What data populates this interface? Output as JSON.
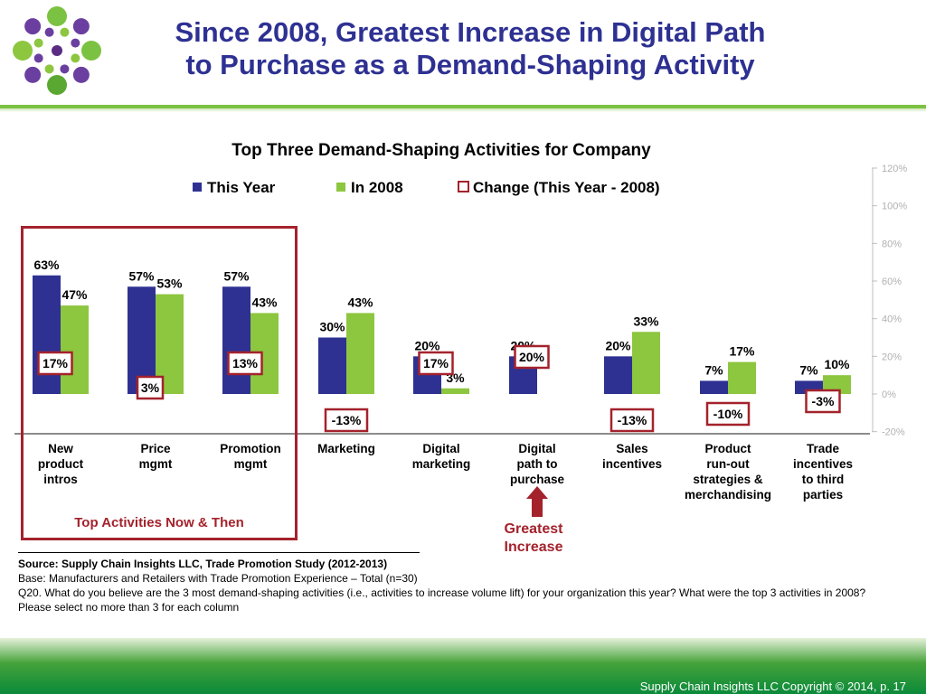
{
  "slide": {
    "title_line1": "Since 2008, Greatest Increase in Digital Path",
    "title_line2": "to Purchase as a Demand-Shaping Activity"
  },
  "colors": {
    "this_year": "#2e3192",
    "in_2008": "#8dc63f",
    "change": "#a4222c",
    "title": "#2e3192",
    "footer": "#0b8a3a"
  },
  "callouts": {
    "top_activities": "Top Activities Now & Then",
    "greatest_line1": "Greatest",
    "greatest_line2": "Increase"
  },
  "footnotes": {
    "source": "Source:  Supply Chain Insights LLC, Trade Promotion Study (2012-2013)",
    "base": "Base:  Manufacturers and Retailers with Trade Promotion Experience – Total (n=30)",
    "question": "Q20. What do you believe are the 3 most demand-shaping activities (i.e., activities to increase volume lift) for your organization this year?  What were the top 3 activities in 2008?  Please select no more than 3 for each column"
  },
  "footer": {
    "copyright": "Supply Chain Insights LLC Copyright © 2014, p. 17"
  },
  "chart_data": {
    "type": "bar",
    "title": "Top Three Demand-Shaping  Activities  for Company",
    "categories": [
      [
        "New",
        "product",
        "intros"
      ],
      [
        "Price",
        "mgmt"
      ],
      [
        "Promotion",
        "mgmt"
      ],
      [
        "Marketing"
      ],
      [
        "Digital",
        "marketing"
      ],
      [
        "Digital",
        "path to",
        "purchase"
      ],
      [
        "Sales",
        "incentives"
      ],
      [
        "Product",
        "run-out",
        "strategies &",
        "merchandising"
      ],
      [
        "Trade",
        "incentives",
        "to third",
        "parties"
      ]
    ],
    "series": [
      {
        "name": "This Year",
        "values": [
          63,
          57,
          57,
          30,
          20,
          20,
          20,
          7,
          7
        ],
        "labels": [
          "63%",
          "57%",
          "57%",
          "30%",
          "20%",
          "20%",
          "20%",
          "7%",
          "7%"
        ]
      },
      {
        "name": "In 2008",
        "values": [
          47,
          53,
          43,
          43,
          3,
          0,
          33,
          17,
          10
        ],
        "labels": [
          "47%",
          "53%",
          "43%",
          "43%",
          "3%",
          "",
          "33%",
          "17%",
          "10%"
        ]
      }
    ],
    "change": {
      "name": "Change (This Year - 2008)",
      "values": [
        17,
        3,
        13,
        -13,
        17,
        20,
        -13,
        -10,
        -3
      ],
      "labels": [
        "17%",
        "3%",
        "13%",
        "-13%",
        "17%",
        "20%",
        "-13%",
        "-10%",
        "-3%"
      ]
    },
    "ylim": [
      -20,
      120
    ],
    "yticks": [
      "120%",
      "100%",
      "80%",
      "60%",
      "40%",
      "20%",
      "0%",
      "-20%"
    ],
    "axis_position": "right",
    "legend_position": "top",
    "grid": false
  }
}
